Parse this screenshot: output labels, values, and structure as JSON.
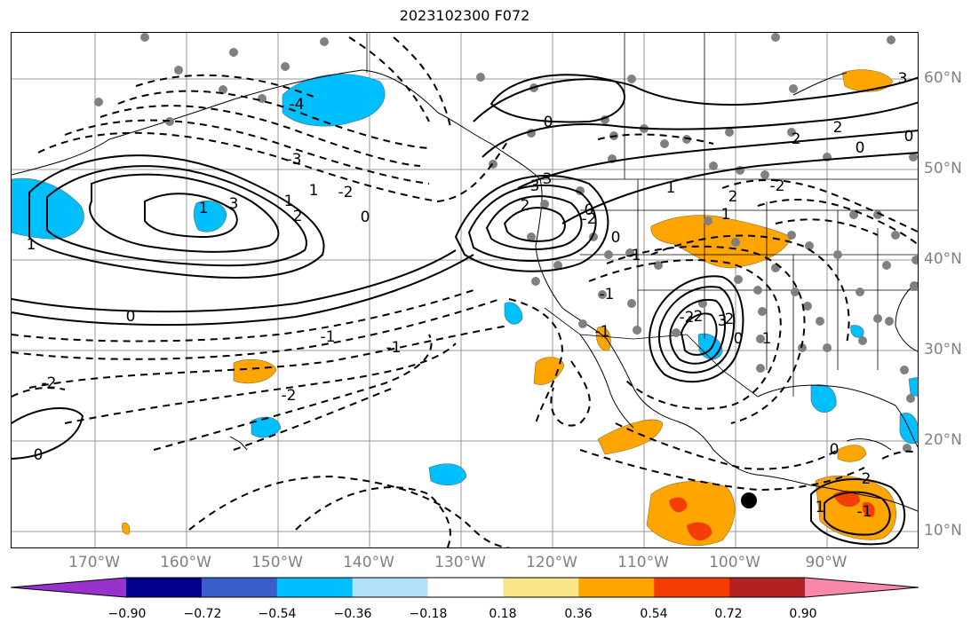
{
  "title": "2023102300 F072",
  "map": {
    "lon_labels": [
      "170°W",
      "160°W",
      "150°W",
      "140°W",
      "130°W",
      "120°W",
      "110°W",
      "100°W",
      "90°W"
    ],
    "lat_labels": [
      "60°N",
      "50°N",
      "40°N",
      "30°N",
      "20°N",
      "10°N"
    ],
    "contour_labels": [
      "-4",
      "3",
      "-3",
      "2",
      "1",
      "-2",
      "1",
      "0",
      "-1",
      "1",
      "0",
      "1",
      "-1",
      "-2",
      "-2",
      "0",
      "3",
      "-3",
      "2",
      "-2",
      "1",
      "2",
      "1",
      "-2",
      "2",
      "0",
      "3",
      "0",
      "0",
      "2",
      "-2",
      "3",
      "-1",
      "0",
      "-1",
      "0",
      "1",
      "-1",
      "-2",
      "0",
      "-1",
      "2",
      "0",
      "1",
      "2"
    ]
  },
  "colorbar": {
    "ticks": [
      "−0.90",
      "−0.72",
      "−0.54",
      "−0.36",
      "−0.18",
      "0.18",
      "0.36",
      "0.54",
      "0.72",
      "0.90"
    ],
    "colors": [
      "#9932cc",
      "#00008b",
      "#3a5fcd",
      "#00bfff",
      "#b0e0fa",
      "#ffffff",
      "#fbe58a",
      "#ffa500",
      "#f53e05",
      "#b22222",
      "#fa88ab"
    ]
  }
}
